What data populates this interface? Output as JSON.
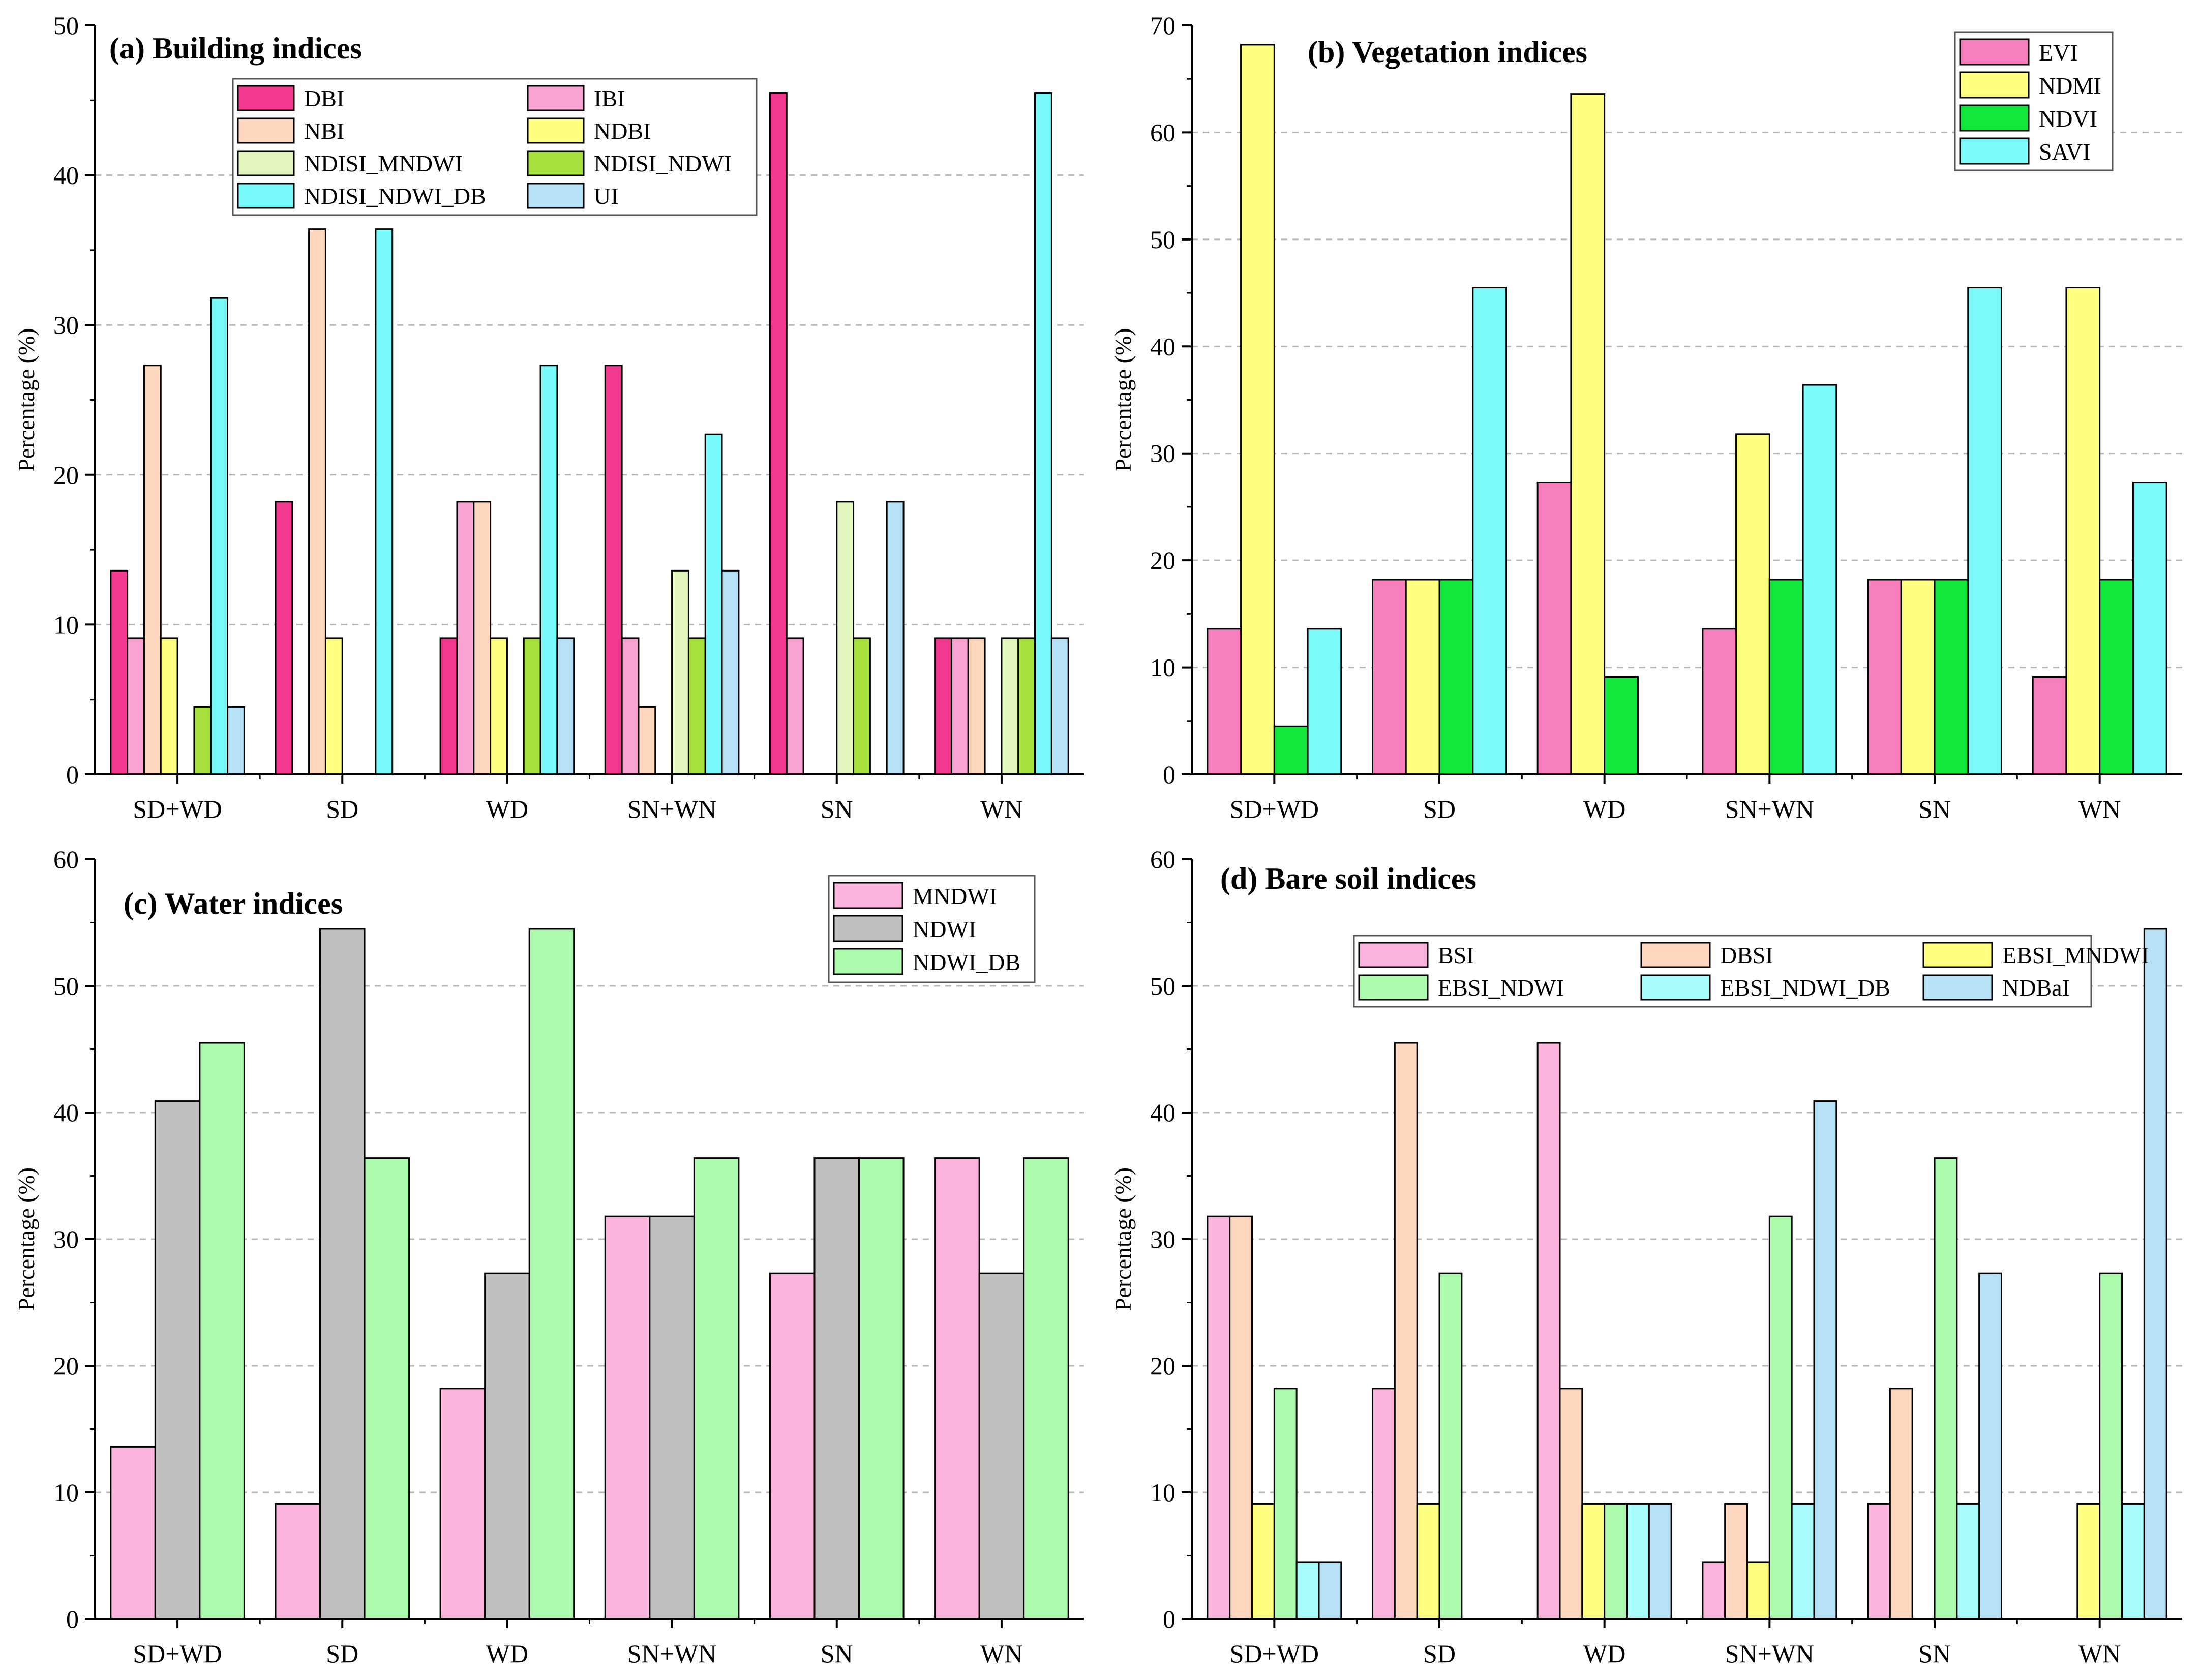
{
  "chart_data": [
    {
      "type": "bar",
      "title": "(a) Building indices",
      "xlabel": "",
      "ylabel": "Percentage (%)",
      "ylim": [
        0,
        50
      ],
      "yticks": [
        0,
        10,
        20,
        30,
        40,
        50
      ],
      "categories": [
        "SD+WD",
        "SD",
        "WD",
        "SN+WN",
        "SN",
        "WN"
      ],
      "legend_position": "top-center",
      "legend_columns": 2,
      "series": [
        {
          "name": "DBI",
          "color": "#F0388F",
          "values": [
            13.6,
            18.2,
            9.1,
            27.3,
            45.5,
            9.1
          ]
        },
        {
          "name": "IBI",
          "color": "#F9A3D3",
          "values": [
            9.1,
            0,
            18.2,
            9.1,
            9.1,
            9.1
          ]
        },
        {
          "name": "NBI",
          "color": "#FDD7BE",
          "values": [
            27.3,
            36.4,
            18.2,
            4.5,
            0,
            9.1
          ]
        },
        {
          "name": "NDBI",
          "color": "#FFFF80",
          "values": [
            9.1,
            9.1,
            9.1,
            0,
            0,
            0
          ]
        },
        {
          "name": "NDISI_MNDWI",
          "color": "#E2F7BE",
          "values": [
            0,
            0,
            0,
            13.6,
            18.2,
            9.1
          ]
        },
        {
          "name": "NDISI_NDWI",
          "color": "#A5E03C",
          "values": [
            4.5,
            0,
            9.1,
            9.1,
            9.1,
            9.1
          ]
        },
        {
          "name": "NDISI_NDWI_DB",
          "color": "#78FAFA",
          "values": [
            31.8,
            36.4,
            27.3,
            22.7,
            0,
            45.5
          ]
        },
        {
          "name": "UI",
          "color": "#B7E1F7",
          "values": [
            4.5,
            0,
            9.1,
            13.6,
            18.2,
            9.1
          ]
        }
      ]
    },
    {
      "type": "bar",
      "title": "(b) Vegetation indices",
      "xlabel": "",
      "ylabel": "Percentage (%)",
      "ylim": [
        0,
        70
      ],
      "yticks": [
        0,
        10,
        20,
        30,
        40,
        50,
        60,
        70
      ],
      "categories": [
        "SD+WD",
        "SD",
        "WD",
        "SN+WN",
        "SN",
        "WN"
      ],
      "legend_position": "top-right",
      "legend_columns": 1,
      "series": [
        {
          "name": "EVI",
          "color": "#F77FBE",
          "values": [
            13.6,
            18.2,
            27.3,
            13.6,
            18.2,
            9.1
          ]
        },
        {
          "name": "NDMI",
          "color": "#FFFF80",
          "values": [
            68.2,
            18.2,
            63.6,
            31.8,
            18.2,
            45.5
          ]
        },
        {
          "name": "NDVI",
          "color": "#12E83C",
          "values": [
            4.5,
            18.2,
            9.1,
            18.2,
            18.2,
            18.2
          ]
        },
        {
          "name": "SAVI",
          "color": "#7BFAFA",
          "values": [
            13.6,
            45.5,
            0,
            36.4,
            45.5,
            27.3
          ]
        }
      ]
    },
    {
      "type": "bar",
      "title": "(c) Water indices",
      "xlabel": "",
      "ylabel": "Percentage (%)",
      "ylim": [
        0,
        60
      ],
      "yticks": [
        0,
        10,
        20,
        30,
        40,
        50,
        60
      ],
      "categories": [
        "SD+WD",
        "SD",
        "WD",
        "SN+WN",
        "SN",
        "WN"
      ],
      "legend_position": "top-right",
      "legend_columns": 1,
      "series": [
        {
          "name": "MNDWI",
          "color": "#FBB4DC",
          "values": [
            13.6,
            9.1,
            18.2,
            31.8,
            27.3,
            36.4
          ]
        },
        {
          "name": "NDWI",
          "color": "#C0C0C0",
          "values": [
            40.9,
            54.5,
            27.3,
            31.8,
            36.4,
            27.3
          ]
        },
        {
          "name": "NDWI_DB",
          "color": "#ADFCAD",
          "values": [
            45.5,
            36.4,
            54.5,
            36.4,
            36.4,
            36.4
          ]
        }
      ]
    },
    {
      "type": "bar",
      "title": "(d) Bare soil indices",
      "xlabel": "",
      "ylabel": "Percentage (%)",
      "ylim": [
        0,
        60
      ],
      "yticks": [
        0,
        10,
        20,
        30,
        40,
        50,
        60
      ],
      "categories": [
        "SD+WD",
        "SD",
        "WD",
        "SN+WN",
        "SN",
        "WN"
      ],
      "legend_position": "top-center",
      "legend_columns": 3,
      "series": [
        {
          "name": "BSI",
          "color": "#FBB4DC",
          "values": [
            31.8,
            18.2,
            45.5,
            4.5,
            9.1,
            0
          ]
        },
        {
          "name": "DBSI",
          "color": "#FDD7BE",
          "values": [
            31.8,
            45.5,
            18.2,
            9.1,
            18.2,
            0
          ]
        },
        {
          "name": "EBSI_MNDWI",
          "color": "#FFFF80",
          "values": [
            9.1,
            9.1,
            9.1,
            4.5,
            0,
            9.1
          ]
        },
        {
          "name": "EBSI_NDWI",
          "color": "#ADFCAD",
          "values": [
            18.2,
            27.3,
            9.1,
            31.8,
            36.4,
            27.3
          ]
        },
        {
          "name": "EBSI_NDWI_DB",
          "color": "#A8FCFC",
          "values": [
            4.5,
            0,
            9.1,
            9.1,
            9.1,
            9.1
          ]
        },
        {
          "name": "NDBaI",
          "color": "#B7E1F7",
          "values": [
            4.5,
            0,
            9.1,
            40.9,
            27.3,
            54.5
          ]
        }
      ]
    }
  ]
}
